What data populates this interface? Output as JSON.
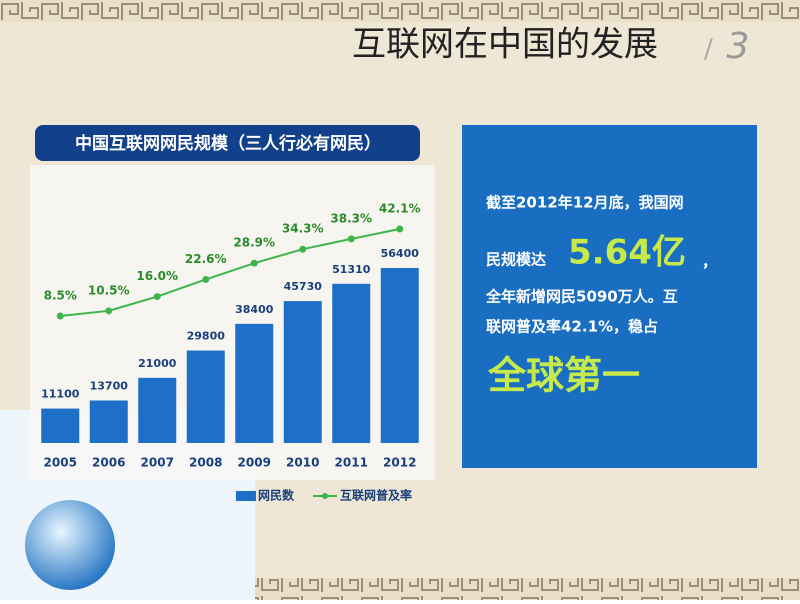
{
  "slide": {
    "title": "互联网在中国的发展",
    "page": "3",
    "separator": "/"
  },
  "chart_data": {
    "type": "bar-line",
    "title": "中国互联网网民规模（三人行必有网民）",
    "categories": [
      "2005",
      "2006",
      "2007",
      "2008",
      "2009",
      "2010",
      "2011",
      "2012"
    ],
    "series": [
      {
        "name": "网民数",
        "color": "#1e6fc8",
        "type": "bar",
        "values": [
          11100,
          13700,
          21000,
          29800,
          38400,
          45730,
          51310,
          56400
        ]
      },
      {
        "name": "互联网普及率",
        "color": "#3db54a",
        "type": "line",
        "values": [
          8.5,
          10.5,
          16.0,
          22.6,
          28.9,
          34.3,
          38.3,
          42.1
        ],
        "value_labels": [
          "8.5%",
          "10.5%",
          "16.0%",
          "22.6%",
          "28.9%",
          "34.3%",
          "38.3%",
          "42.1%"
        ]
      }
    ],
    "legend": "bottom"
  },
  "panel": {
    "line1": "截至2012年12月底，我国网",
    "line2a": "民规模达",
    "line2b": "5.64亿",
    "line2c": "，",
    "line3": "全年新增网民5090万人。互",
    "line4": "联网普及率42.1%，稳占",
    "line5": "全球第一"
  }
}
